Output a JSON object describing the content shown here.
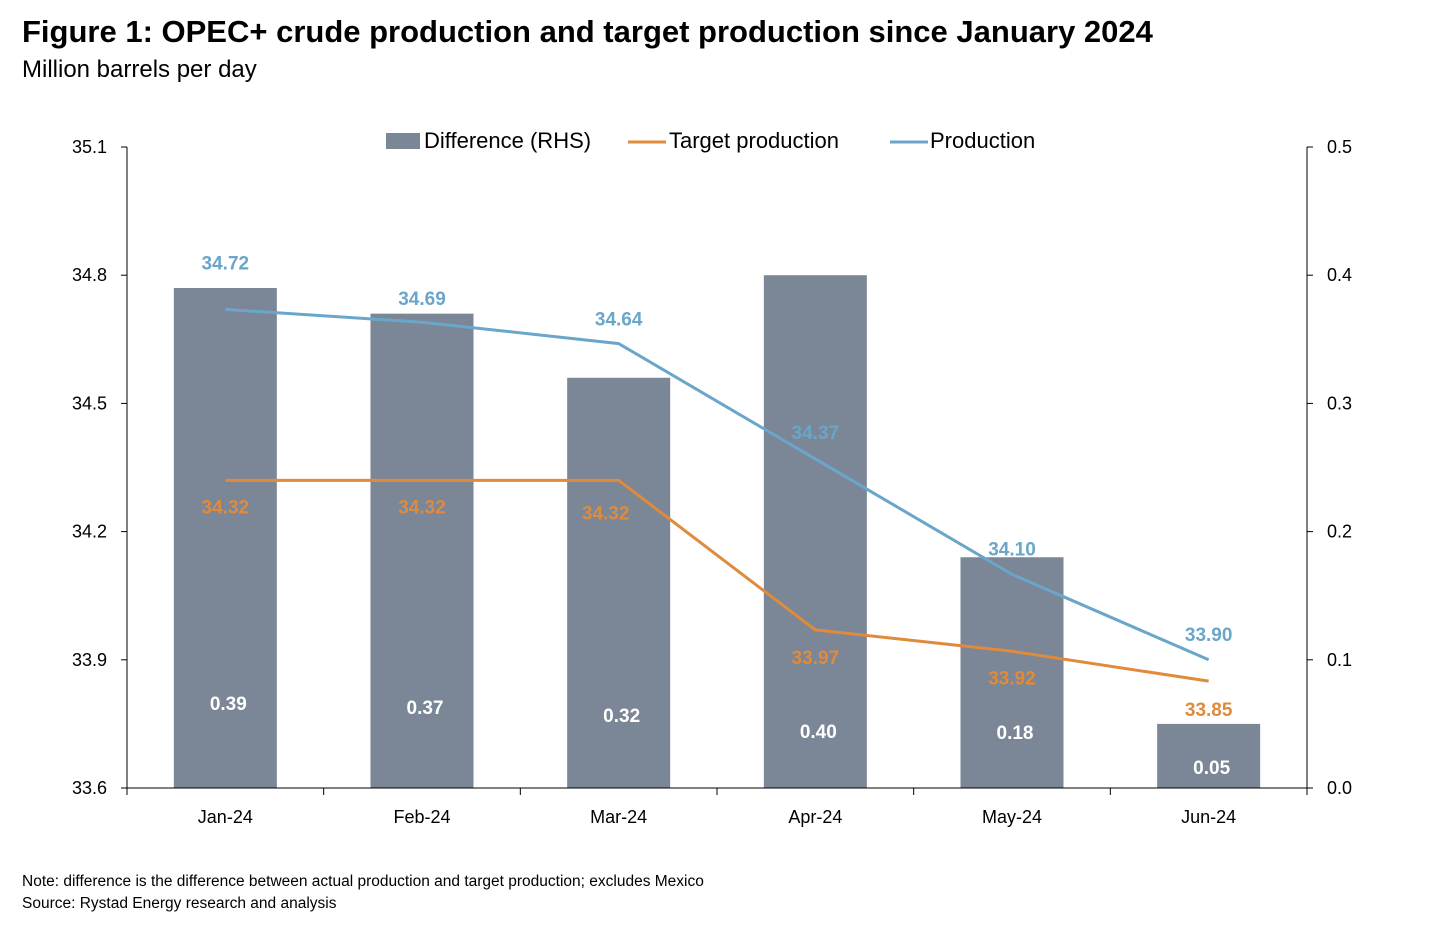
{
  "colors": {
    "bar": "#7b8696",
    "target": "#e08a3c",
    "production": "#6aa6c9",
    "axis": "#000000"
  },
  "chart_data": {
    "type": "bar",
    "title": "Figure 1: OPEC+ crude production and target production since January 2024",
    "subtitle": "Million barrels per day",
    "categories": [
      "Jan-24",
      "Feb-24",
      "Mar-24",
      "Apr-24",
      "May-24",
      "Jun-24"
    ],
    "series": [
      {
        "name": "Difference (RHS)",
        "type": "bar",
        "axis": "right",
        "values": [
          0.39,
          0.37,
          0.32,
          0.4,
          0.18,
          0.05
        ],
        "labels": [
          "0.39",
          "0.37",
          "0.32",
          "0.40",
          "0.18",
          "0.05"
        ]
      },
      {
        "name": "Target production",
        "type": "line",
        "axis": "left",
        "values": [
          34.32,
          34.32,
          34.32,
          33.97,
          33.92,
          33.85
        ],
        "labels": [
          "34.32",
          "34.32",
          "34.32",
          "33.97",
          "33.92",
          "33.85"
        ]
      },
      {
        "name": "Production",
        "type": "line",
        "axis": "left",
        "values": [
          34.72,
          34.69,
          34.64,
          34.37,
          34.1,
          33.9
        ],
        "labels": [
          "34.72",
          "34.69",
          "34.64",
          "34.37",
          "34.10",
          "33.90"
        ]
      }
    ],
    "ylim_left": [
      33.6,
      35.1
    ],
    "yticks_left": [
      "35.1",
      "34.8",
      "34.5",
      "34.2",
      "33.9",
      "33.6"
    ],
    "ylim_right": [
      0,
      0.5
    ],
    "yticks_right": [
      "0.5",
      "0.4",
      "0.3",
      "0.2",
      "0.1",
      "0.0"
    ],
    "legend": "top-center",
    "grid": false
  },
  "notes": [
    "Note: difference is the difference between actual production and target production; excludes Mexico",
    "Source: Rystad Energy research and analysis"
  ]
}
